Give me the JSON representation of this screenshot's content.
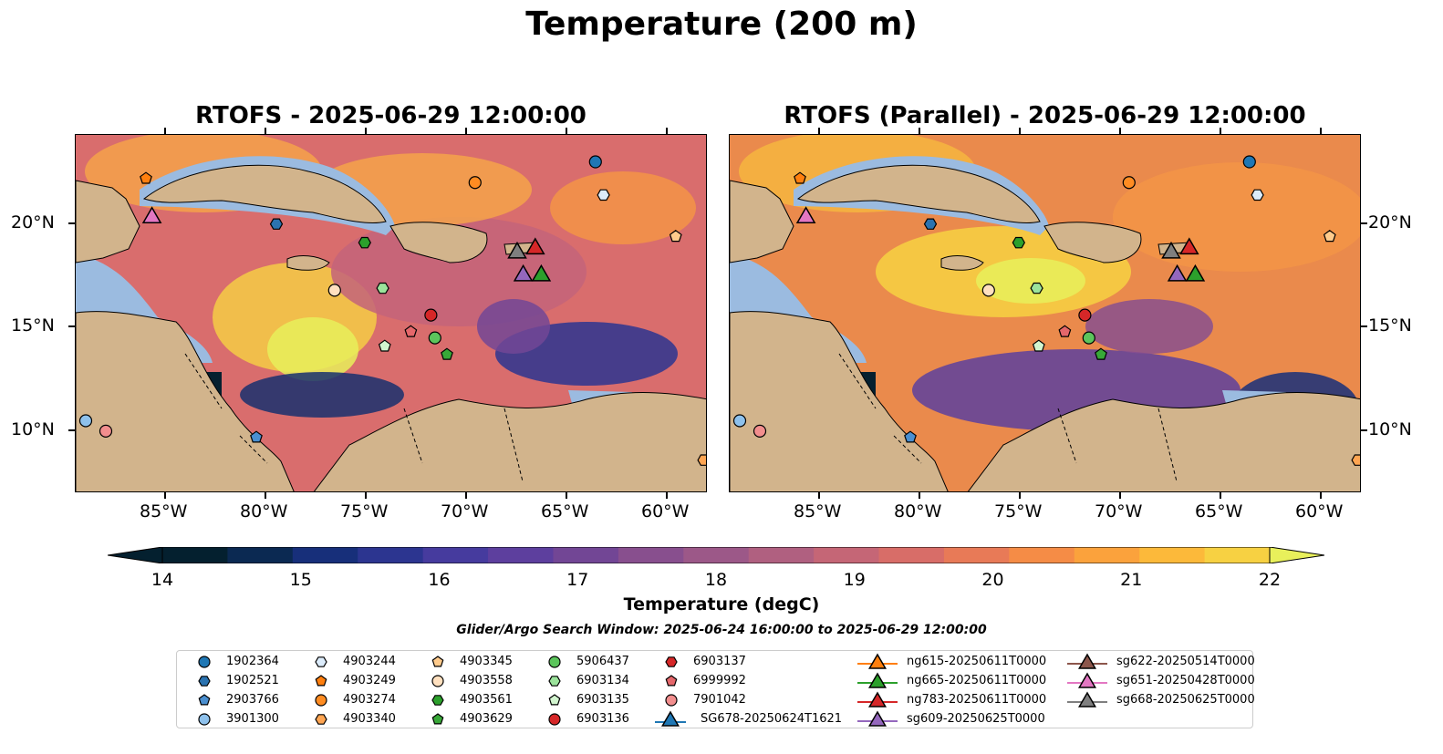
{
  "title": "Temperature (200 m)",
  "panels": [
    {
      "title": "RTOFS - 2025-06-29 12:00:00"
    },
    {
      "title": "RTOFS (Parallel) - 2025-06-29 12:00:00"
    }
  ],
  "axes": {
    "lon_labels": [
      "85°W",
      "80°W",
      "75°W",
      "70°W",
      "65°W",
      "60°W"
    ],
    "lat_labels": [
      "20°N",
      "15°N",
      "10°N"
    ]
  },
  "colorbar": {
    "label": "Temperature (degC)",
    "ticks": [
      "14",
      "15",
      "16",
      "17",
      "18",
      "19",
      "20",
      "21",
      "22"
    ],
    "min": 14,
    "max": 22,
    "step": 0.5,
    "extend": "both",
    "colormap": "thermal"
  },
  "search_window": "Glider/Argo Search Window: 2025-06-24 16:00:00 to 2025-06-29 12:00:00",
  "legend": {
    "argo_columns": [
      [
        {
          "label": "1902364",
          "marker": "circle",
          "color": "#1f77b4"
        },
        {
          "label": "1902521",
          "marker": "hexagon",
          "color": "#2b73b0"
        },
        {
          "label": "2903766",
          "marker": "pentagon",
          "color": "#4a8fd0"
        },
        {
          "label": "3901300",
          "marker": "circle",
          "color": "#8ec1ec"
        }
      ],
      [
        {
          "label": "4903244",
          "marker": "hexagon",
          "color": "#dcecfb"
        },
        {
          "label": "4903249",
          "marker": "pentagon",
          "color": "#ff7f0e"
        },
        {
          "label": "4903274",
          "marker": "circle",
          "color": "#ff8c22"
        },
        {
          "label": "4903340",
          "marker": "hexagon",
          "color": "#ffa552"
        }
      ],
      [
        {
          "label": "4903345",
          "marker": "pentagon",
          "color": "#ffcb8c"
        },
        {
          "label": "4903558",
          "marker": "circle",
          "color": "#ffe0bf"
        },
        {
          "label": "4903561",
          "marker": "hexagon",
          "color": "#2ca02c"
        },
        {
          "label": "4903629",
          "marker": "pentagon",
          "color": "#38a838"
        }
      ],
      [
        {
          "label": "5906437",
          "marker": "circle",
          "color": "#5cc55c"
        },
        {
          "label": "6903134",
          "marker": "hexagon",
          "color": "#9be39b"
        },
        {
          "label": "6903135",
          "marker": "pentagon",
          "color": "#d2f5cf"
        },
        {
          "label": "6903136",
          "marker": "circle",
          "color": "#d62728"
        }
      ],
      [
        {
          "label": "6903137",
          "marker": "hexagon",
          "color": "#d62728"
        },
        {
          "label": "6999992",
          "marker": "pentagon",
          "color": "#e5676b"
        },
        {
          "label": "7901042",
          "marker": "circle",
          "color": "#f28e8e"
        },
        {
          "label": "SG678-20250624T1621",
          "marker": "triangle",
          "color": "#1f77b4",
          "line": "#1f77b4"
        }
      ]
    ],
    "glider_columns": [
      [
        {
          "label": "ng615-20250611T0000",
          "color": "#ff7f0e"
        },
        {
          "label": "ng665-20250611T0000",
          "color": "#2ca02c"
        },
        {
          "label": "ng783-20250611T0000",
          "color": "#d62728"
        },
        {
          "label": "sg609-20250625T0000",
          "color": "#9467bd"
        }
      ],
      [
        {
          "label": "sg622-20250514T0000",
          "color": "#8c564b"
        },
        {
          "label": "sg651-20250428T0000",
          "color": "#e377c2"
        },
        {
          "label": "sg668-20250625T0000",
          "color": "#7f7f7f"
        }
      ]
    ]
  },
  "observations": {
    "argo": [
      {
        "id": "1902364",
        "lon": -63.6,
        "lat": 23.0
      },
      {
        "id": "4903244",
        "lon": -63.2,
        "lat": 21.4
      },
      {
        "id": "4903274",
        "lon": -69.6,
        "lat": 22.0
      },
      {
        "id": "4903249",
        "lon": -86.0,
        "lat": 22.2
      },
      {
        "id": "1902521",
        "lon": -79.5,
        "lat": 20.0
      },
      {
        "id": "4903345",
        "lon": -59.6,
        "lat": 19.4
      },
      {
        "id": "4903561",
        "lon": -75.1,
        "lat": 19.1
      },
      {
        "id": "4903558",
        "lon": -76.6,
        "lat": 16.8
      },
      {
        "id": "6903134",
        "lon": -74.2,
        "lat": 16.9
      },
      {
        "id": "6903136",
        "lon": -71.8,
        "lat": 15.6
      },
      {
        "id": "6999992",
        "lon": -72.8,
        "lat": 14.8
      },
      {
        "id": "5906437",
        "lon": -71.6,
        "lat": 14.5
      },
      {
        "id": "6903135",
        "lon": -74.1,
        "lat": 14.1
      },
      {
        "id": "4903629",
        "lon": -71.0,
        "lat": 13.7
      },
      {
        "id": "3901300",
        "lon": -89.0,
        "lat": 10.5
      },
      {
        "id": "7901042",
        "lon": -88.0,
        "lat": 10.0
      },
      {
        "id": "2903766",
        "lon": -80.5,
        "lat": 9.7
      },
      {
        "id": "4903340",
        "lon": -58.2,
        "lat": 8.6
      }
    ],
    "gliders": [
      {
        "id": "sg651-20250428T0000",
        "lon": -85.7,
        "lat": 20.4
      },
      {
        "id": "sg668-20250625T0000",
        "lon": -67.5,
        "lat": 18.7
      },
      {
        "id": "ng783-20250611T0000",
        "lon": -66.6,
        "lat": 18.9
      },
      {
        "id": "sg609-20250625T0000",
        "lon": -67.2,
        "lat": 17.6
      },
      {
        "id": "ng665-20250611T0000",
        "lon": -66.3,
        "lat": 17.6
      }
    ]
  },
  "colors": {
    "land": "#d2b48c",
    "shelf": "#9bbbe0"
  }
}
